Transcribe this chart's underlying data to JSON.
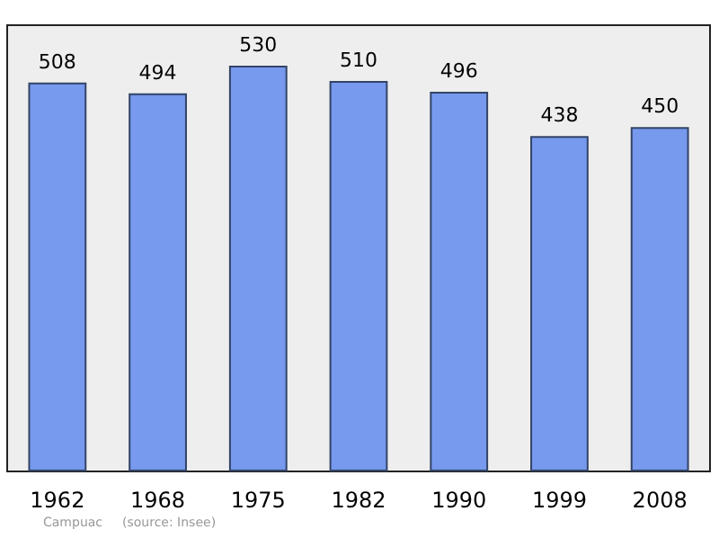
{
  "chart_data": {
    "type": "bar",
    "categories": [
      "1962",
      "1968",
      "1975",
      "1982",
      "1990",
      "1999",
      "2008"
    ],
    "values": [
      508,
      494,
      530,
      510,
      496,
      438,
      450
    ],
    "color": "#7799ee",
    "data_labels": true,
    "annotations": [
      "Campuac",
      "(source: Insee)"
    ]
  }
}
